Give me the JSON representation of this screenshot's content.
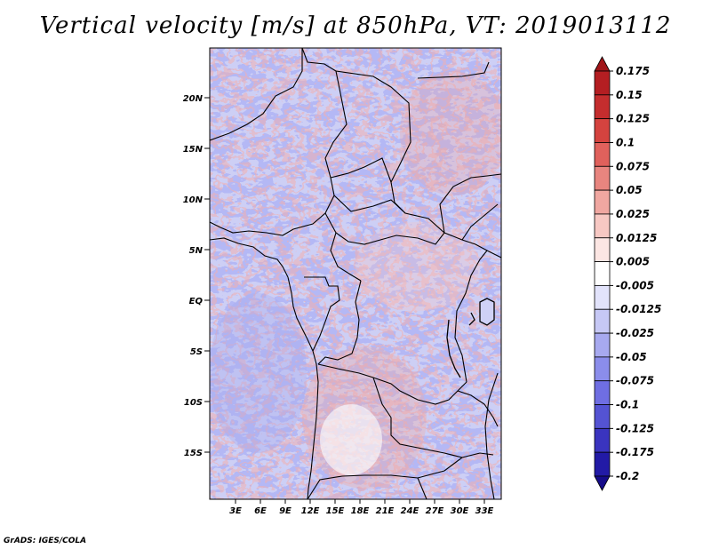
{
  "title": "Vertical velocity [m/s] at 850hPa, VT: 2019013112",
  "footer": "GrADS: IGES/COLA",
  "map": {
    "variable": "Vertical velocity",
    "units": "m/s",
    "level": "850hPa",
    "valid_time": "2019013112",
    "lat_ticks": [
      "20N",
      "15N",
      "10N",
      "5N",
      "EQ",
      "5S",
      "10S",
      "15S"
    ],
    "lon_ticks": [
      "3E",
      "6E",
      "9E",
      "12E",
      "15E",
      "18E",
      "21E",
      "24E",
      "27E",
      "30E",
      "33E"
    ]
  },
  "colorbar": {
    "levels": [
      "0.175",
      "0.15",
      "0.125",
      "0.1",
      "0.075",
      "0.05",
      "0.025",
      "0.0125",
      "0.005",
      "-0.005",
      "-0.0125",
      "-0.025",
      "-0.05",
      "-0.075",
      "-0.1",
      "-0.125",
      "-0.175",
      "-0.2"
    ],
    "colors": [
      "#a01418",
      "#b41e22",
      "#c42d2e",
      "#d4433f",
      "#e0615c",
      "#e8857f",
      "#f0a7a1",
      "#f7c8c3",
      "#fce6e3",
      "#ffffff",
      "#e2e3fb",
      "#c6c8f5",
      "#a7a9ef",
      "#8b8deb",
      "#6f6ee2",
      "#5453d3",
      "#3a34bf",
      "#221aa6",
      "#160c8a"
    ]
  }
}
